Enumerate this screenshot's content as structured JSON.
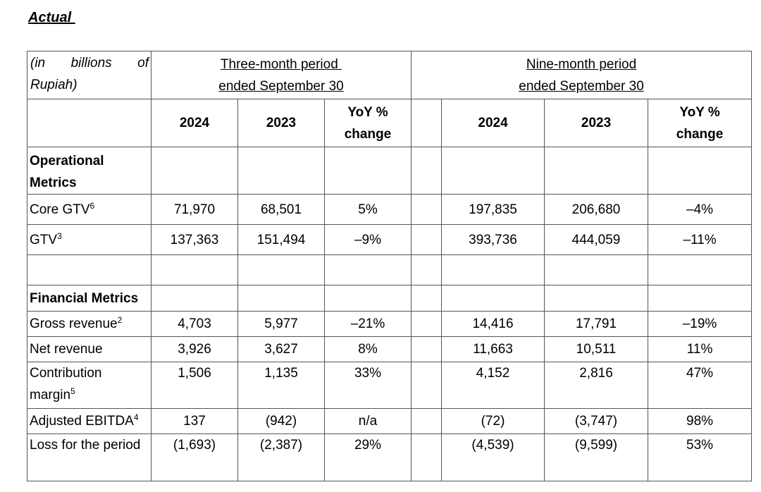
{
  "heading": "Actual ",
  "units_label": "(in billions of Rupiah)",
  "periods": [
    {
      "line1": "Three-month period ",
      "line2": "ended September 30"
    },
    {
      "line1": "Nine-month period",
      "line2": "ended September 30"
    }
  ],
  "columns": {
    "y2024": "2024",
    "y2023": "2023",
    "yoy_line1": "YoY %",
    "yoy_line2": "change"
  },
  "sections": {
    "operational": "Operational Metrics",
    "financial": "Financial Metrics"
  },
  "rows": [
    {
      "label": "Core GTV",
      "sup": "6",
      "q24": "71,970",
      "q23": "68,501",
      "qyoy": "5%",
      "n24": "197,835",
      "n23": "206,680",
      "nyoy": "–4%"
    },
    {
      "label": "GTV",
      "sup": "3",
      "q24": "137,363",
      "q23": "151,494",
      "qyoy": "–9%",
      "n24": "393,736",
      "n23": "444,059",
      "nyoy": "–11%"
    },
    {
      "label": "Gross revenue",
      "sup": "2",
      "q24": "4,703",
      "q23": "5,977",
      "qyoy": "–21%",
      "n24": "14,416",
      "n23": "17,791",
      "nyoy": "–19%"
    },
    {
      "label": "Net revenue",
      "sup": "",
      "q24": "3,926",
      "q23": "3,627",
      "qyoy": "8%",
      "n24": "11,663",
      "n23": "10,511",
      "nyoy": "11%"
    },
    {
      "label": "Contribution margin",
      "sup": "5",
      "q24": "1,506",
      "q23": "1,135",
      "qyoy": "33%",
      "n24": "4,152",
      "n23": "2,816",
      "nyoy": "47%"
    },
    {
      "label": "Adjusted EBITDA",
      "sup": "4",
      "q24": "137",
      "q23": "(942)",
      "qyoy": "n/a",
      "n24": "(72)",
      "n23": "(3,747)",
      "nyoy": "98%"
    },
    {
      "label": "Loss for the period",
      "sup": "",
      "q24": "(1,693)",
      "q23": "(2,387)",
      "qyoy": "29%",
      "n24": "(4,539)",
      "n23": "(9,599)",
      "nyoy": "53%"
    }
  ]
}
